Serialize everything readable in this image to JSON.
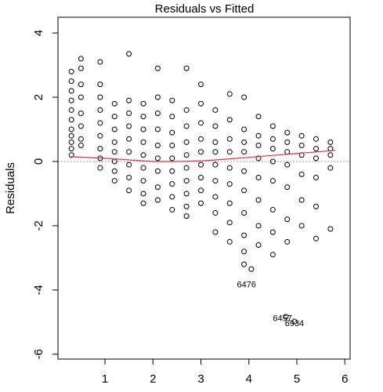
{
  "chart_data": {
    "type": "scatter",
    "title": "Residuals vs Fitted",
    "y_label": "Residuals",
    "x": [
      0.3,
      0.3,
      0.3,
      0.3,
      0.3,
      0.3,
      0.3,
      0.3,
      0.3,
      0.3,
      0.3,
      0.5,
      0.5,
      0.5,
      0.5,
      0.5,
      0.5,
      0.5,
      0.5,
      0.9,
      0.9,
      0.9,
      0.9,
      0.9,
      0.9,
      0.9,
      0.9,
      0.9,
      1.2,
      1.2,
      1.2,
      1.2,
      1.2,
      1.2,
      1.2,
      1.2,
      1.5,
      1.5,
      1.5,
      1.5,
      1.5,
      1.5,
      1.5,
      1.5,
      1.5,
      1.8,
      1.8,
      1.8,
      1.8,
      1.8,
      1.8,
      1.8,
      1.8,
      1.8,
      2.1,
      2.1,
      2.1,
      2.1,
      2.1,
      2.1,
      2.1,
      2.1,
      2.1,
      2.4,
      2.4,
      2.4,
      2.4,
      2.4,
      2.4,
      2.4,
      2.4,
      2.4,
      2.7,
      2.7,
      2.7,
      2.7,
      2.7,
      2.7,
      2.7,
      2.7,
      2.7,
      2.7,
      3.0,
      3.0,
      3.0,
      3.0,
      3.0,
      3.0,
      3.0,
      3.0,
      3.0,
      3.3,
      3.3,
      3.3,
      3.3,
      3.3,
      3.3,
      3.3,
      3.3,
      3.3,
      3.6,
      3.6,
      3.6,
      3.6,
      3.6,
      3.6,
      3.6,
      3.6,
      3.6,
      3.9,
      3.9,
      3.9,
      3.9,
      3.9,
      3.9,
      3.9,
      3.9,
      3.9,
      3.9,
      4.2,
      4.2,
      4.2,
      4.2,
      4.2,
      4.2,
      4.2,
      4.2,
      4.5,
      4.5,
      4.5,
      4.5,
      4.5,
      4.5,
      4.5,
      4.5,
      4.8,
      4.8,
      4.8,
      4.8,
      4.8,
      4.8,
      4.8,
      5.1,
      5.1,
      5.1,
      5.1,
      5.1,
      5.1,
      5.4,
      5.4,
      5.4,
      5.4,
      5.4,
      5.4,
      5.7,
      5.7,
      5.7,
      5.7,
      5.7,
      4.05,
      4.77,
      4.95
    ],
    "y": [
      2.8,
      2.5,
      2.2,
      1.9,
      1.6,
      1.3,
      1.0,
      0.8,
      0.6,
      0.4,
      0.2,
      3.2,
      2.9,
      2.4,
      2.0,
      1.5,
      1.1,
      0.7,
      0.5,
      3.1,
      2.4,
      2.0,
      1.6,
      1.2,
      0.8,
      0.4,
      0.1,
      -0.2,
      1.8,
      1.4,
      1.0,
      0.6,
      0.3,
      0.0,
      -0.3,
      -0.6,
      3.35,
      1.9,
      1.5,
      1.1,
      0.7,
      0.3,
      -0.1,
      -0.5,
      -0.9,
      1.8,
      1.4,
      1.0,
      0.6,
      0.2,
      -0.2,
      -0.6,
      -1.0,
      -1.3,
      2.9,
      2.0,
      1.5,
      1.0,
      0.5,
      0.1,
      -0.3,
      -0.8,
      -1.2,
      1.9,
      1.4,
      0.9,
      0.5,
      0.1,
      -0.3,
      -0.7,
      -1.1,
      -1.5,
      2.9,
      1.6,
      1.1,
      0.6,
      0.2,
      -0.2,
      -0.6,
      -1.0,
      -1.4,
      -1.7,
      2.4,
      1.8,
      1.2,
      0.7,
      0.3,
      -0.1,
      -0.5,
      -0.9,
      -1.3,
      1.6,
      1.1,
      0.6,
      0.3,
      -0.1,
      -0.6,
      -1.1,
      -1.6,
      -2.2,
      2.1,
      1.3,
      0.7,
      0.3,
      -0.2,
      -0.7,
      -1.3,
      -1.9,
      -2.5,
      2.0,
      1.0,
      0.6,
      0.3,
      -0.3,
      -0.9,
      -1.6,
      -2.3,
      -2.8,
      -3.2,
      1.4,
      0.8,
      0.5,
      0.1,
      -0.5,
      -1.2,
      -2.0,
      -2.6,
      1.1,
      0.7,
      0.4,
      0.0,
      -0.6,
      -1.5,
      -2.2,
      -2.9,
      0.9,
      0.6,
      0.3,
      -0.1,
      -0.8,
      -1.8,
      -2.5,
      0.8,
      0.5,
      0.2,
      -0.4,
      -1.2,
      -2.0,
      0.7,
      0.4,
      0.1,
      -0.5,
      -1.4,
      -2.4,
      0.6,
      0.4,
      0.2,
      -0.2,
      -2.1,
      -3.35,
      -4.83,
      -4.98
    ],
    "smooth": {
      "color": "#e03030",
      "x": [
        0.3,
        1.0,
        1.5,
        2.0,
        2.5,
        3.0,
        3.5,
        4.0,
        4.5,
        5.0,
        5.5,
        5.8
      ],
      "y": [
        0.15,
        0.1,
        0.05,
        0.0,
        0.0,
        0.02,
        0.07,
        0.13,
        0.19,
        0.25,
        0.31,
        0.35
      ]
    },
    "reference_line": 0,
    "annotations": [
      {
        "text": "6476",
        "x": 3.95,
        "y": -3.85
      },
      {
        "text": "6457",
        "x": 4.7,
        "y": -4.9
      },
      {
        "text": "6934",
        "x": 4.95,
        "y": -5.05
      }
    ],
    "xlim": [
      0.02,
      6.11
    ],
    "ylim": [
      -6.15,
      4.49
    ],
    "xticks": [
      1,
      2,
      3,
      4,
      5,
      6
    ],
    "yticks": [
      -6,
      -4,
      -2,
      0,
      2,
      4
    ],
    "color": "#000000"
  }
}
